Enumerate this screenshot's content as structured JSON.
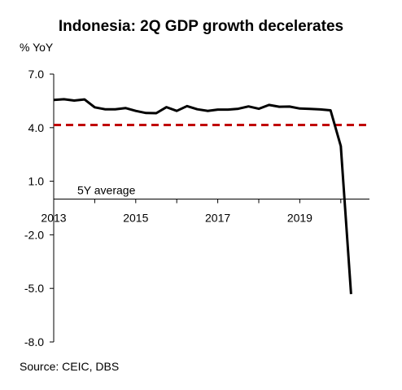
{
  "chart_data": {
    "type": "line",
    "title": "Indonesia: 2Q GDP growth decelerates",
    "ylabel": "% YoY",
    "source": "Source: CEIC, DBS",
    "ylim": [
      -8.0,
      7.0
    ],
    "y_ticks": [
      "7.0",
      "4.0",
      "1.0",
      "-2.0",
      "-5.0",
      "-8.0"
    ],
    "y_tick_values": [
      7.0,
      4.0,
      1.0,
      -2.0,
      -5.0,
      -8.0
    ],
    "x_ticks": [
      "2013",
      "2015",
      "2017",
      "2019"
    ],
    "x_tick_values": [
      2013,
      2015,
      2017,
      2019
    ],
    "xlim": [
      2013,
      2020.5
    ],
    "grid": false,
    "series": [
      {
        "name": "",
        "color": "#000000",
        "x": [
          2013.0,
          2013.25,
          2013.5,
          2013.75,
          2014.0,
          2014.25,
          2014.5,
          2014.75,
          2015.0,
          2015.25,
          2015.5,
          2015.75,
          2016.0,
          2016.25,
          2016.5,
          2016.75,
          2017.0,
          2017.25,
          2017.5,
          2017.75,
          2018.0,
          2018.25,
          2018.5,
          2018.75,
          2019.0,
          2019.25,
          2019.5,
          2019.75,
          2020.0,
          2020.25
        ],
        "values": [
          5.55,
          5.59,
          5.52,
          5.58,
          5.14,
          5.03,
          5.03,
          5.1,
          4.94,
          4.82,
          4.81,
          5.15,
          4.94,
          5.21,
          5.03,
          4.94,
          5.01,
          5.01,
          5.06,
          5.19,
          5.06,
          5.27,
          5.17,
          5.18,
          5.07,
          5.05,
          5.02,
          4.97,
          2.97,
          -5.32
        ]
      }
    ],
    "reference_line": {
      "label": "5Y average",
      "value": 4.15,
      "color": "#c00000",
      "style": "dashed"
    }
  }
}
